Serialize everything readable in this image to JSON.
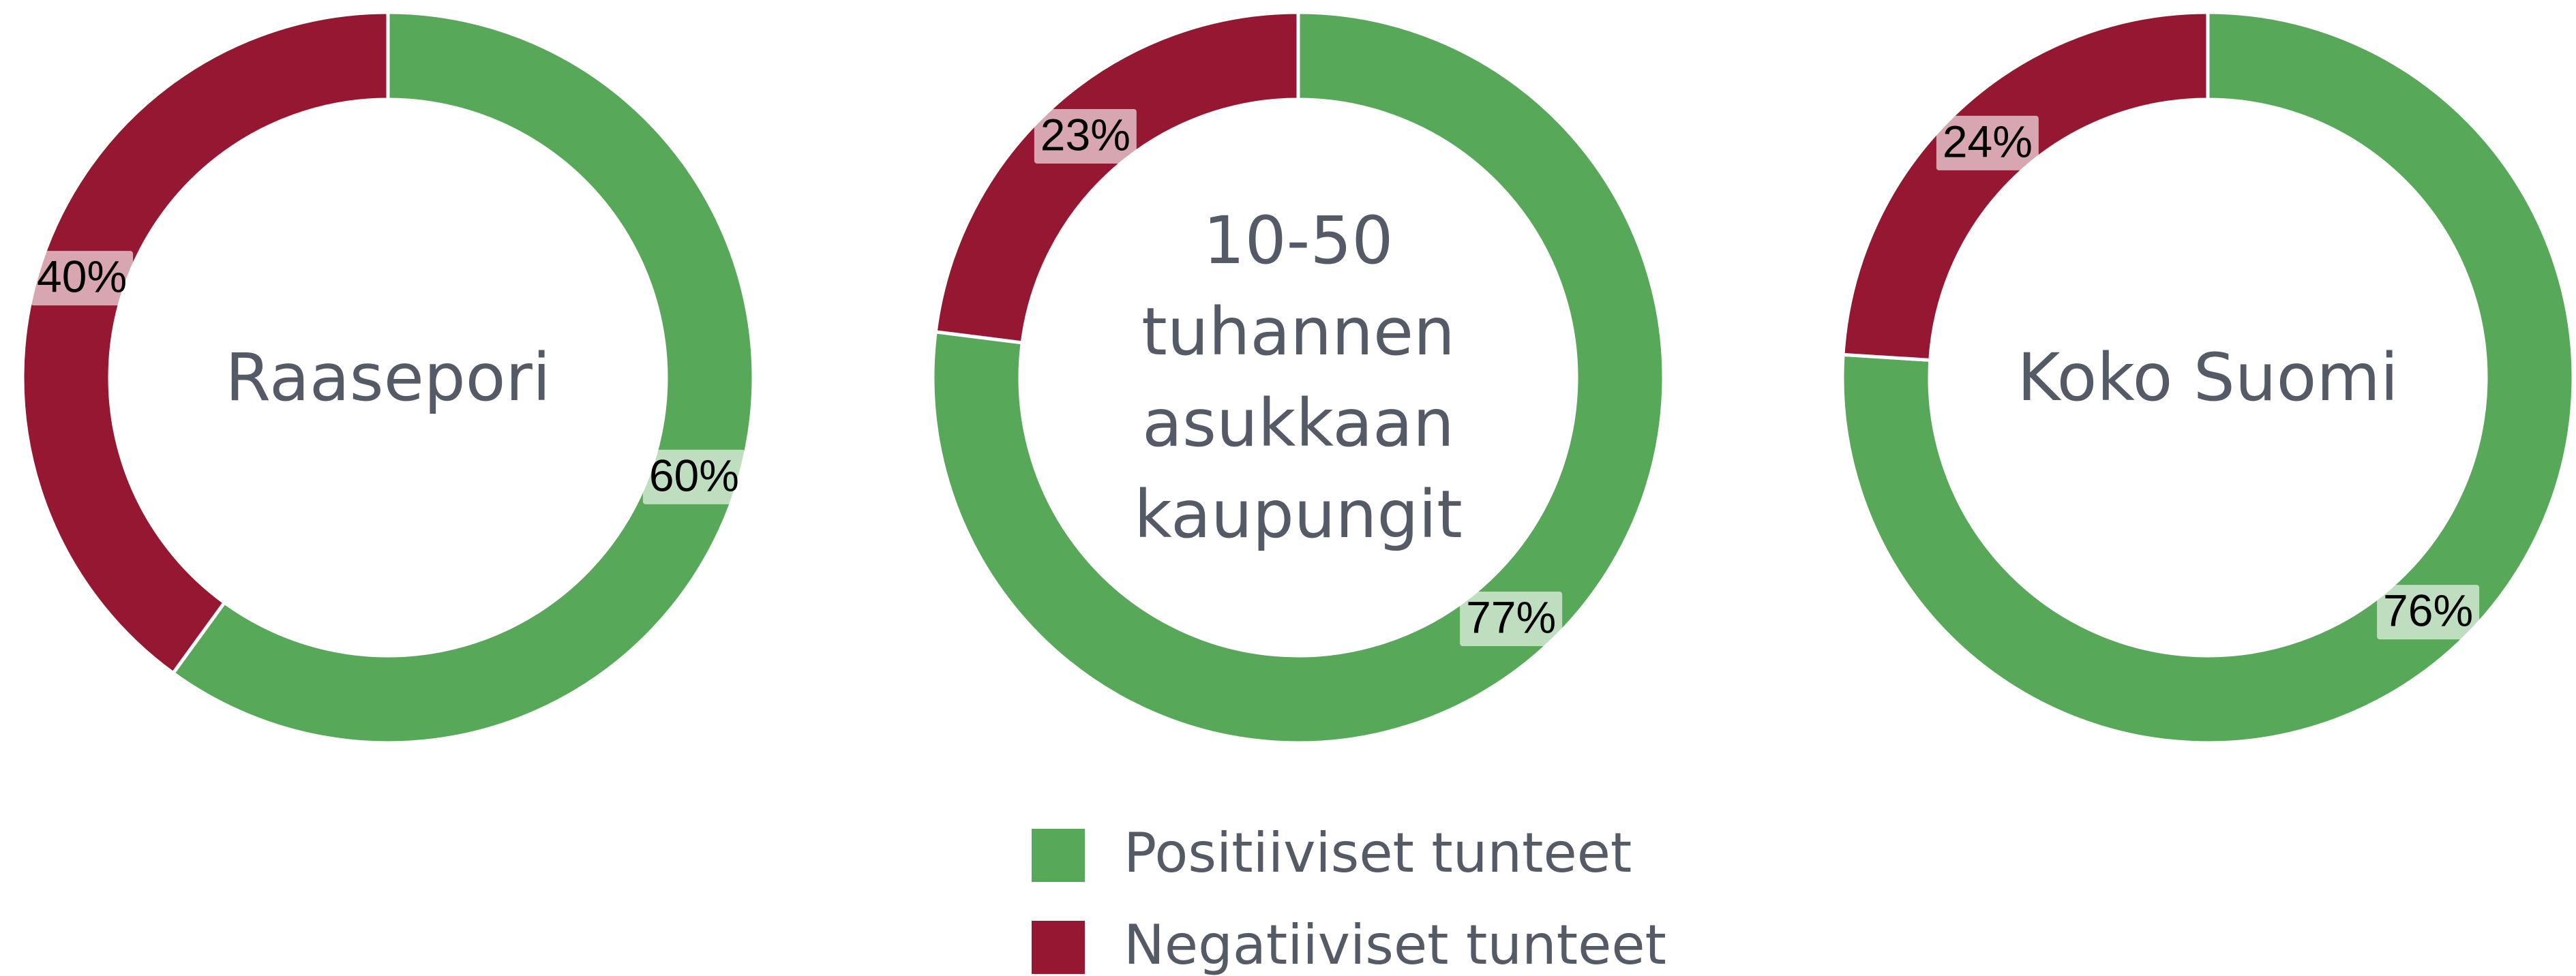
{
  "chart_data": {
    "type": "donut",
    "categories": [
      "Raasepori",
      "10-50 tuhannen asukkaan kaupungit",
      "Koko Suomi"
    ],
    "series": [
      {
        "name": "Positiiviset tunteet",
        "color": "#58a85a",
        "values": [
          60,
          77,
          76
        ],
        "value_labels": [
          "60%",
          "77%",
          "76%"
        ]
      },
      {
        "name": "Negatiiviset tunteet",
        "color": "#951732",
        "values": [
          40,
          23,
          24
        ],
        "value_labels": [
          "40%",
          "23%",
          "24%"
        ]
      }
    ]
  }
}
